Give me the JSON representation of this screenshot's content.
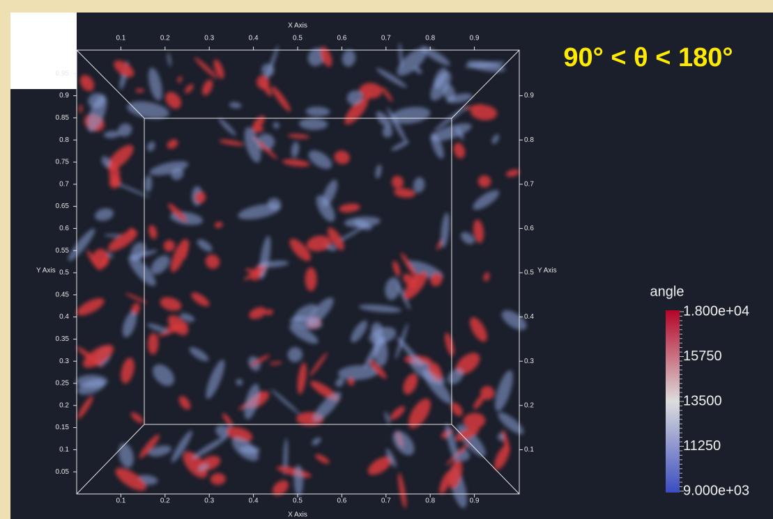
{
  "title": "90° < θ < 180°",
  "x_axis": {
    "label": "X Axis",
    "ticks": [
      0.1,
      0.2,
      0.3,
      0.4,
      0.5,
      0.6,
      0.7,
      0.8,
      0.9
    ]
  },
  "y_axis": {
    "label": "Y Axis",
    "left_ticks": [
      0.05,
      0.1,
      0.15,
      0.2,
      0.25,
      0.3,
      0.35,
      0.4,
      0.45,
      0.5,
      0.55,
      0.6,
      0.65,
      0.7,
      0.75,
      0.8,
      0.85,
      0.9,
      0.95
    ],
    "right_ticks": [
      0.1,
      0.2,
      0.3,
      0.4,
      0.5,
      0.6,
      0.7,
      0.8,
      0.9
    ]
  },
  "colorbar": {
    "title": "angle",
    "labels": [
      "1.800e+04",
      "15750",
      "13500",
      "11250",
      "9.000e+03"
    ]
  }
}
